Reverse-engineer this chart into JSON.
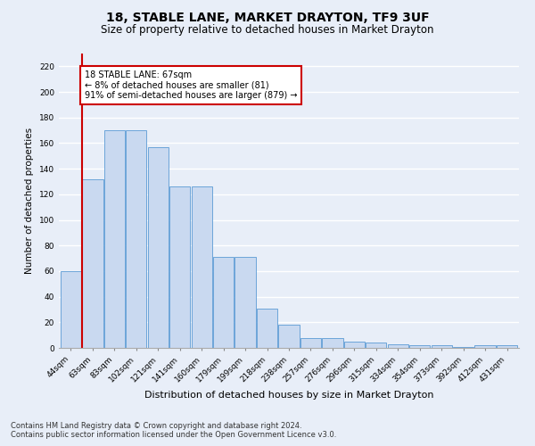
{
  "title": "18, STABLE LANE, MARKET DRAYTON, TF9 3UF",
  "subtitle": "Size of property relative to detached houses in Market Drayton",
  "xlabel": "Distribution of detached houses by size in Market Drayton",
  "ylabel": "Number of detached properties",
  "categories": [
    "44sqm",
    "63sqm",
    "83sqm",
    "102sqm",
    "121sqm",
    "141sqm",
    "160sqm",
    "179sqm",
    "199sqm",
    "218sqm",
    "238sqm",
    "257sqm",
    "276sqm",
    "296sqm",
    "315sqm",
    "334sqm",
    "354sqm",
    "373sqm",
    "392sqm",
    "412sqm",
    "431sqm"
  ],
  "bar_values": [
    60,
    132,
    170,
    170,
    157,
    126,
    126,
    71,
    71,
    31,
    18,
    8,
    8,
    5,
    4,
    3,
    2,
    2,
    1,
    2,
    2
  ],
  "bar_color": "#c9d9f0",
  "bar_edge_color": "#5b9bd5",
  "annotation_text": "18 STABLE LANE: 67sqm\n← 8% of detached houses are smaller (81)\n91% of semi-detached houses are larger (879) →",
  "annotation_box_color": "#ffffff",
  "annotation_box_edge_color": "#cc0000",
  "property_line_color": "#cc0000",
  "ylim": [
    0,
    230
  ],
  "yticks": [
    0,
    20,
    40,
    60,
    80,
    100,
    120,
    140,
    160,
    180,
    200,
    220
  ],
  "footer1": "Contains HM Land Registry data © Crown copyright and database right 2024.",
  "footer2": "Contains public sector information licensed under the Open Government Licence v3.0.",
  "bg_color": "#e8eef8",
  "fig_bg_color": "#e8eef8",
  "grid_color": "#ffffff",
  "title_fontsize": 10,
  "subtitle_fontsize": 8.5,
  "ylabel_fontsize": 7.5,
  "xlabel_fontsize": 8,
  "tick_fontsize": 6.5,
  "annotation_fontsize": 7,
  "footer_fontsize": 6
}
